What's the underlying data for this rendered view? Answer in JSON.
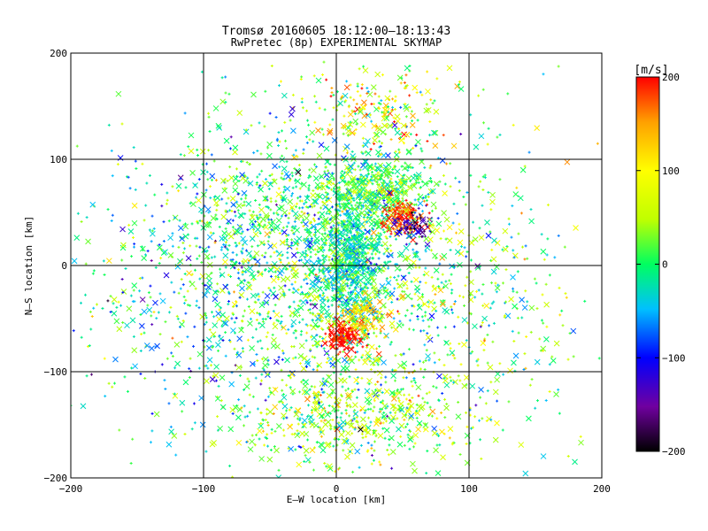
{
  "chart_data": {
    "type": "scatter",
    "title": "Tromsø 20160605 18:12:00–18:13:43",
    "subtitle": "RwPretec (8p) EXPERIMENTAL SKYMAP",
    "xlabel": "E–W location [km]",
    "ylabel": "N–S location [km]",
    "xlim": [
      -200,
      200
    ],
    "ylim": [
      -200,
      200
    ],
    "xticks": [
      -200,
      -100,
      0,
      100,
      200
    ],
    "yticks": [
      -200,
      -100,
      0,
      100,
      200
    ],
    "grid": true,
    "colorbar": {
      "label": "[m/s]",
      "range": [
        -200,
        200
      ],
      "ticks": [
        -200,
        -100,
        0,
        100,
        200
      ],
      "colormap": "rainbow",
      "stops": [
        "#000000",
        "#7000a0",
        "#0000ff",
        "#00c0ff",
        "#00ff60",
        "#c0ff00",
        "#ffff00",
        "#ffa000",
        "#ff0000"
      ]
    },
    "markers": {
      "small": "+",
      "large": "x"
    },
    "clusters": [
      {
        "cx": 0,
        "cy": 0,
        "sx": 55,
        "sy": 70,
        "n": 1300,
        "vmean": 10,
        "vsd": 55
      },
      {
        "cx": 10,
        "cy": 5,
        "sx": 12,
        "sy": 30,
        "n": 650,
        "vmean": -20,
        "vsd": 35
      },
      {
        "cx": 30,
        "cy": 70,
        "sx": 25,
        "sy": 15,
        "n": 420,
        "vmean": 10,
        "vsd": 35
      },
      {
        "cx": 50,
        "cy": 45,
        "sx": 8,
        "sy": 8,
        "n": 140,
        "vmean": 180,
        "vsd": 25
      },
      {
        "cx": 60,
        "cy": 35,
        "sx": 8,
        "sy": 8,
        "n": 60,
        "vmean": -150,
        "vsd": 30
      },
      {
        "cx": 5,
        "cy": -68,
        "sx": 6,
        "sy": 6,
        "n": 110,
        "vmean": 200,
        "vsd": 10
      },
      {
        "cx": 15,
        "cy": -50,
        "sx": 12,
        "sy": 10,
        "n": 140,
        "vmean": 120,
        "vsd": 45
      },
      {
        "cx": 15,
        "cy": -140,
        "sx": 45,
        "sy": 25,
        "n": 520,
        "vmean": 40,
        "vsd": 55
      },
      {
        "cx": 30,
        "cy": 145,
        "sx": 30,
        "sy": 18,
        "n": 180,
        "vmean": 90,
        "vsd": 60
      },
      {
        "cx": -60,
        "cy": 40,
        "sx": 50,
        "sy": 40,
        "n": 380,
        "vmean": 0,
        "vsd": 45
      },
      {
        "cx": -120,
        "cy": -50,
        "sx": 50,
        "sy": 60,
        "n": 260,
        "vmean": -20,
        "vsd": 60
      },
      {
        "cx": 120,
        "cy": -40,
        "sx": 40,
        "sy": 70,
        "n": 220,
        "vmean": 20,
        "vsd": 55
      },
      {
        "cx": 0,
        "cy": 0,
        "sx": 110,
        "sy": 110,
        "n": 350,
        "vmean": 0,
        "vsd": 70
      }
    ]
  }
}
